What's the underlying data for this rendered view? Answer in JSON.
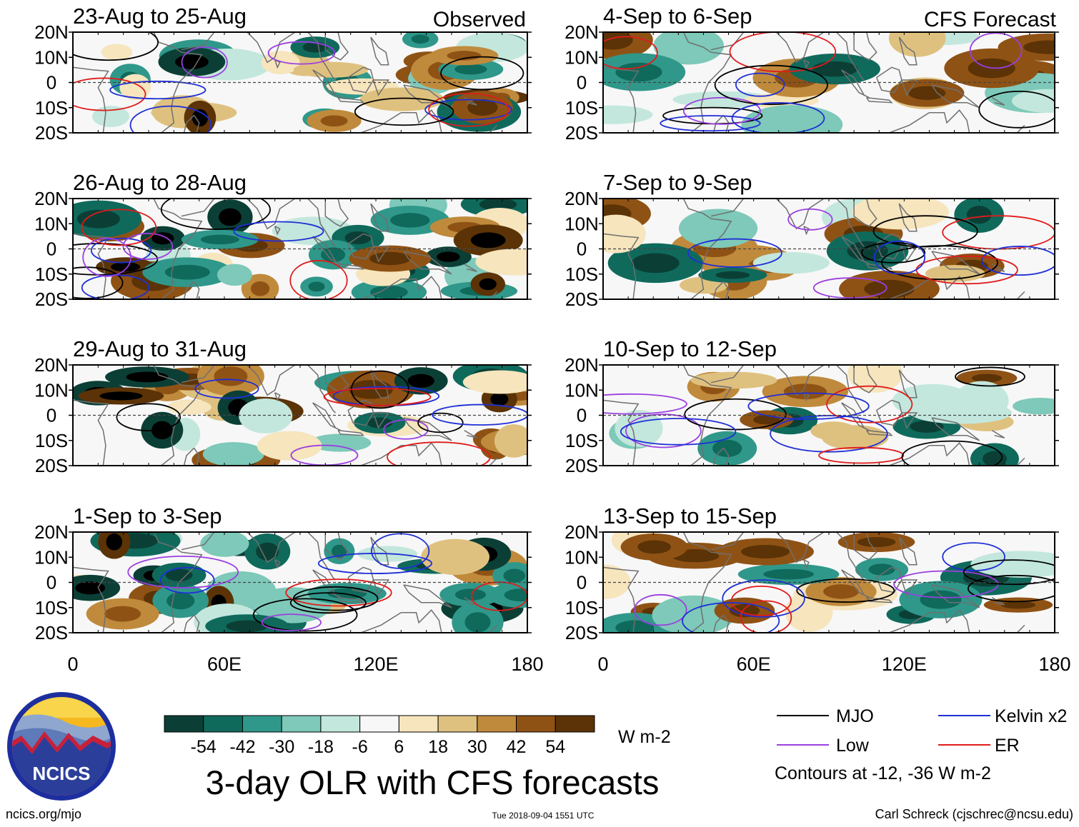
{
  "title": "3-day OLR with CFS forecasts",
  "chart_data": {
    "type": "heatmap",
    "title": "3-day OLR with CFS forecasts",
    "variable": "OLR anomaly",
    "units": "W m-2",
    "columns": [
      {
        "label": "Observed",
        "periods": [
          "23-Aug to 25-Aug",
          "26-Aug to 28-Aug",
          "29-Aug to 31-Aug",
          "1-Sep to 3-Sep"
        ]
      },
      {
        "label": "CFS Forecast",
        "periods": [
          "4-Sep to 6-Sep",
          "7-Sep to 9-Sep",
          "10-Sep to 12-Sep",
          "13-Sep to 15-Sep"
        ]
      }
    ],
    "xrange": [
      0,
      180
    ],
    "yrange": [
      -20,
      20
    ],
    "x_ticks": [
      {
        "value": 0,
        "label": "0"
      },
      {
        "value": 60,
        "label": "60E"
      },
      {
        "value": 120,
        "label": "120E"
      },
      {
        "value": 180,
        "label": "180"
      }
    ],
    "y_ticks": [
      {
        "value": 20,
        "label": "20N"
      },
      {
        "value": 10,
        "label": "10N"
      },
      {
        "value": 0,
        "label": "0"
      },
      {
        "value": -10,
        "label": "10S"
      },
      {
        "value": -20,
        "label": "20S"
      }
    ],
    "colorbar": {
      "tick_labels": [
        "-54",
        "-42",
        "-30",
        "-18",
        "-6",
        "6",
        "18",
        "30",
        "42",
        "54"
      ],
      "tick_values": [
        -54,
        -42,
        -30,
        -18,
        -6,
        6,
        18,
        30,
        42,
        54
      ],
      "colors": [
        "#0b3f36",
        "#0f6a5c",
        "#2f988a",
        "#7ec9b9",
        "#c3e7dd",
        "#f7f7f7",
        "#f6e5bd",
        "#dfc17f",
        "#c08a3c",
        "#8f5215",
        "#5b3306"
      ]
    },
    "contours": {
      "legend": [
        {
          "name": "MJO",
          "color": "#000000"
        },
        {
          "name": "Kelvin x2",
          "color": "#1f2fd6"
        },
        {
          "name": "Low",
          "color": "#9b3fe0"
        },
        {
          "name": "ER",
          "color": "#e01b1b"
        }
      ],
      "note": "Contours at -12, -36 W m-2"
    }
  },
  "colors": {
    "mjo": "#000000",
    "kelvin": "#1f2fd6",
    "low": "#9b3fe0",
    "er": "#e01b1b",
    "coast": "#6f6f6f",
    "logo_ring": "#1d2f9e",
    "logo_sun": "#f5b81f"
  },
  "logo": {
    "text": "NCICS"
  },
  "footer": {
    "url": "ncics.org/mjo",
    "timestamp": "Tue 2018-09-04 1551 UTC",
    "credit": "Carl Schreck (cjschrec@ncsu.edu)"
  }
}
